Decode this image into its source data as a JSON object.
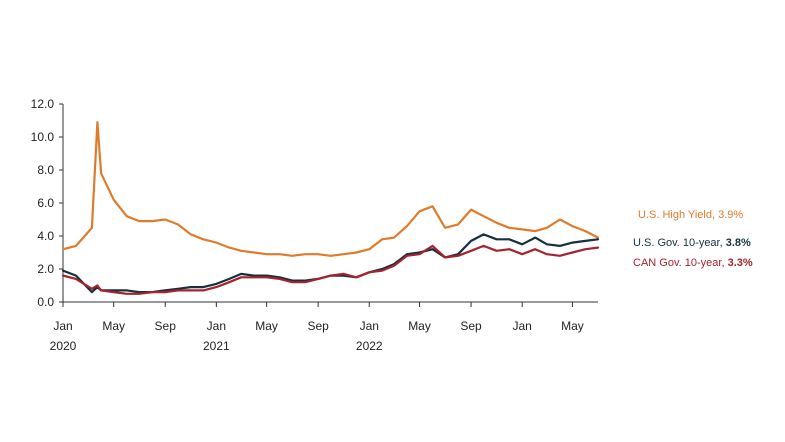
{
  "chart_data": {
    "type": "line",
    "title": "",
    "xlabel": "",
    "ylabel": "",
    "ylim": [
      0,
      12
    ],
    "y_ticks": [
      "0.0",
      "2.0",
      "4.0",
      "6.0",
      "8.0",
      "10.0",
      "12.0"
    ],
    "x_ticks": [
      {
        "month": "Jan",
        "year": "2020",
        "date": "2020-01"
      },
      {
        "month": "May",
        "year": "",
        "date": "2020-05"
      },
      {
        "month": "Sep",
        "year": "",
        "date": "2020-09"
      },
      {
        "month": "Jan",
        "year": "2021",
        "date": "2021-01"
      },
      {
        "month": "May",
        "year": "",
        "date": "2021-05"
      },
      {
        "month": "Sep",
        "year": "",
        "date": "2021-09"
      },
      {
        "month": "Jan",
        "year": "2022",
        "date": "2022-01"
      },
      {
        "month": "May",
        "year": "",
        "date": "2022-05"
      },
      {
        "month": "Sep",
        "year": "",
        "date": "2022-09"
      },
      {
        "month": "Jan",
        "year": "",
        "date": "2023-01"
      },
      {
        "month": "May",
        "year": "",
        "date": "2023-05"
      }
    ],
    "x_start": "2020-01",
    "x_end": "2023-07",
    "grid": false,
    "legend_position": "right",
    "series": [
      {
        "name": "U.S. High Yield",
        "value_label": "3.9%",
        "color": "#e07b2a",
        "x": [
          "2020-01",
          "2020-02",
          "2020-03-10",
          "2020-03-23",
          "2020-04",
          "2020-05",
          "2020-06",
          "2020-07",
          "2020-08",
          "2020-09",
          "2020-10",
          "2020-11",
          "2020-12",
          "2021-01",
          "2021-02",
          "2021-03",
          "2021-04",
          "2021-05",
          "2021-06",
          "2021-07",
          "2021-08",
          "2021-09",
          "2021-10",
          "2021-11",
          "2021-12",
          "2022-01",
          "2022-02",
          "2022-03",
          "2022-04",
          "2022-05",
          "2022-06",
          "2022-07",
          "2022-08",
          "2022-09",
          "2022-10",
          "2022-11",
          "2022-12",
          "2023-01",
          "2023-02",
          "2023-03",
          "2023-04",
          "2023-05",
          "2023-06",
          "2023-07"
        ],
        "values": [
          3.2,
          3.4,
          4.5,
          10.9,
          7.8,
          6.2,
          5.2,
          4.9,
          4.9,
          5.0,
          4.7,
          4.1,
          3.8,
          3.6,
          3.3,
          3.1,
          3.0,
          2.9,
          2.9,
          2.8,
          2.9,
          2.9,
          2.8,
          2.9,
          3.0,
          3.2,
          3.8,
          3.9,
          4.6,
          5.5,
          5.8,
          4.5,
          4.7,
          5.6,
          5.2,
          4.8,
          4.5,
          4.4,
          4.3,
          4.5,
          5.0,
          4.6,
          4.3,
          3.9
        ]
      },
      {
        "name": "U.S. Gov. 10-year",
        "value_label": "3.8%",
        "color": "#15303f",
        "x": [
          "2020-01",
          "2020-02",
          "2020-03-10",
          "2020-03-23",
          "2020-04",
          "2020-05",
          "2020-06",
          "2020-07",
          "2020-08",
          "2020-09",
          "2020-10",
          "2020-11",
          "2020-12",
          "2021-01",
          "2021-02",
          "2021-03",
          "2021-04",
          "2021-05",
          "2021-06",
          "2021-07",
          "2021-08",
          "2021-09",
          "2021-10",
          "2021-11",
          "2021-12",
          "2022-01",
          "2022-02",
          "2022-03",
          "2022-04",
          "2022-05",
          "2022-06",
          "2022-07",
          "2022-08",
          "2022-09",
          "2022-10",
          "2022-11",
          "2022-12",
          "2023-01",
          "2023-02",
          "2023-03",
          "2023-04",
          "2023-05",
          "2023-06",
          "2023-07"
        ],
        "values": [
          1.9,
          1.6,
          0.6,
          0.9,
          0.7,
          0.7,
          0.7,
          0.6,
          0.6,
          0.7,
          0.8,
          0.9,
          0.9,
          1.1,
          1.4,
          1.7,
          1.6,
          1.6,
          1.5,
          1.3,
          1.3,
          1.4,
          1.6,
          1.6,
          1.5,
          1.8,
          2.0,
          2.3,
          2.9,
          3.0,
          3.2,
          2.7,
          2.9,
          3.7,
          4.1,
          3.8,
          3.8,
          3.5,
          3.9,
          3.5,
          3.4,
          3.6,
          3.7,
          3.8
        ]
      },
      {
        "name": "CAN Gov. 10-year",
        "value_label": "3.3%",
        "color": "#a5232e",
        "x": [
          "2020-01",
          "2020-02",
          "2020-03-10",
          "2020-03-23",
          "2020-04",
          "2020-05",
          "2020-06",
          "2020-07",
          "2020-08",
          "2020-09",
          "2020-10",
          "2020-11",
          "2020-12",
          "2021-01",
          "2021-02",
          "2021-03",
          "2021-04",
          "2021-05",
          "2021-06",
          "2021-07",
          "2021-08",
          "2021-09",
          "2021-10",
          "2021-11",
          "2021-12",
          "2022-01",
          "2022-02",
          "2022-03",
          "2022-04",
          "2022-05",
          "2022-06",
          "2022-07",
          "2022-08",
          "2022-09",
          "2022-10",
          "2022-11",
          "2022-12",
          "2023-01",
          "2023-02",
          "2023-03",
          "2023-04",
          "2023-05",
          "2023-06",
          "2023-07"
        ],
        "values": [
          1.6,
          1.4,
          0.8,
          1.0,
          0.7,
          0.6,
          0.5,
          0.5,
          0.6,
          0.6,
          0.7,
          0.7,
          0.7,
          0.9,
          1.2,
          1.5,
          1.5,
          1.5,
          1.4,
          1.2,
          1.2,
          1.4,
          1.6,
          1.7,
          1.5,
          1.8,
          1.9,
          2.2,
          2.8,
          2.9,
          3.4,
          2.7,
          2.8,
          3.1,
          3.4,
          3.1,
          3.2,
          2.9,
          3.2,
          2.9,
          2.8,
          3.0,
          3.2,
          3.3
        ]
      }
    ]
  }
}
